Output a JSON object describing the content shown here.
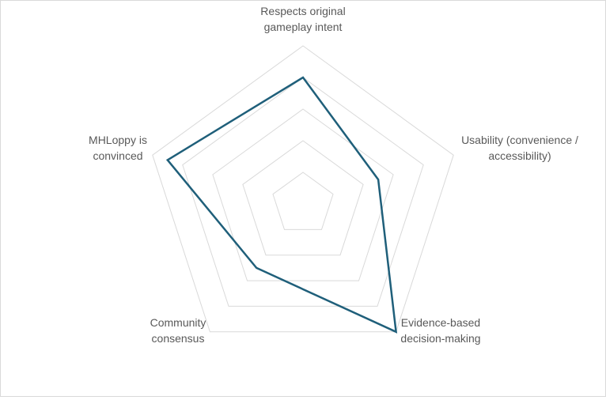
{
  "chart_data": {
    "type": "radar",
    "title": "",
    "axes": [
      {
        "label_lines": [
          "Respects original",
          "gameplay intent"
        ],
        "value": 4
      },
      {
        "label_lines": [
          "Usability (convenience /",
          "accessibility)"
        ],
        "value": 2.5
      },
      {
        "label_lines": [
          "Evidence-based",
          "decision-making"
        ],
        "value": 5
      },
      {
        "label_lines": [
          "Community",
          "consensus"
        ],
        "value": 2.5
      },
      {
        "label_lines": [
          "MHLoppy is",
          "convinced"
        ],
        "value": 4.5
      }
    ],
    "series": [
      {
        "values": [
          4,
          2.5,
          5,
          2.5,
          4.5
        ],
        "color": "#1f5f7a"
      }
    ],
    "range": [
      0,
      5
    ],
    "rings": 5,
    "grid_color": "#d9d9d9",
    "ticks_shown": false,
    "legend": "none"
  }
}
